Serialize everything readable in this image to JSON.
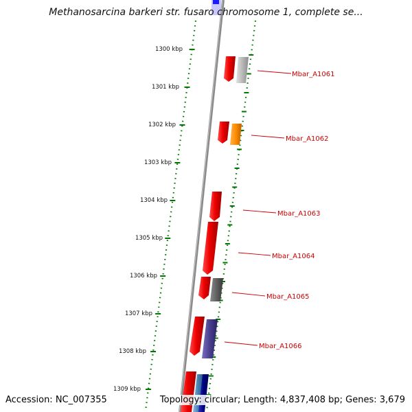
{
  "title": "Methanosarcina barkeri str. fusaro chromosome 1, complete se...",
  "footer": {
    "accession": "Accession: NC_007355",
    "summary": "Topology: circular; Length: 4,837,408 bp; Genes: 3,679"
  },
  "ruler": {
    "ticks": [
      "1300 kbp",
      "1301 kbp",
      "1302 kbp",
      "1303 kbp",
      "1304 kbp",
      "1305 kbp",
      "1306 kbp",
      "1307 kbp",
      "1308 kbp",
      "1309 kbp"
    ],
    "tick_color": "#007700",
    "backbone_color": "#808080"
  },
  "gene_labels": [
    "Mbar_A1061",
    "Mbar_A1062",
    "Mbar_A1063",
    "Mbar_A1064",
    "Mbar_A1065",
    "Mbar_A1066"
  ],
  "colors": {
    "gene_label": "#cc0000",
    "cds_red": "#e00000",
    "feature_gray": "#b0b0b0",
    "feature_orange": "#ff8c00",
    "feature_darkgray": "#606060",
    "feature_purple": "#4a3f8f",
    "feature_blue": "#1a1aff",
    "feature_navy": "#000080",
    "feature_steelblue": "#4682b4"
  }
}
